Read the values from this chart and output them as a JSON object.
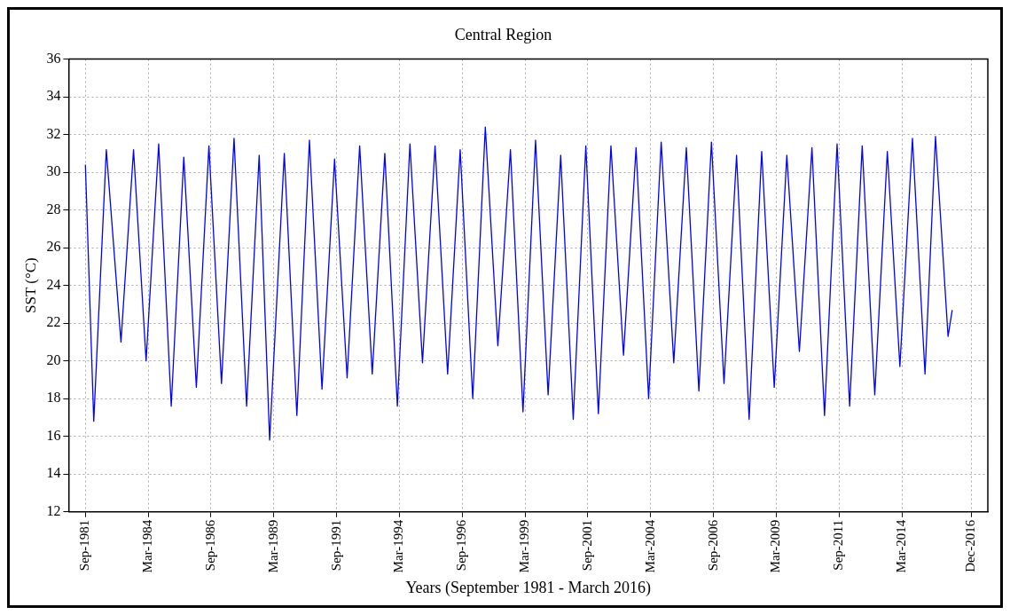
{
  "chart_data": {
    "type": "line",
    "title": "Central Region",
    "xlabel": "Years (September 1981 - March 2016)",
    "ylabel": "SST (°C)",
    "x": [
      "1981-09",
      "1982-01",
      "1982-07",
      "1983-02",
      "1983-08",
      "1984-02",
      "1984-08",
      "1985-02",
      "1985-08",
      "1986-02",
      "1986-08",
      "1987-02",
      "1987-08",
      "1988-02",
      "1988-08",
      "1989-01",
      "1989-08",
      "1990-02",
      "1990-08",
      "1991-02",
      "1991-08",
      "1992-02",
      "1992-08",
      "1993-02",
      "1993-08",
      "1994-02",
      "1994-08",
      "1995-02",
      "1995-08",
      "1996-02",
      "1996-08",
      "1997-02",
      "1997-08",
      "1998-02",
      "1998-08",
      "1999-02",
      "1999-08",
      "2000-02",
      "2000-08",
      "2001-02",
      "2001-08",
      "2002-02",
      "2002-08",
      "2003-02",
      "2003-08",
      "2004-02",
      "2004-08",
      "2005-02",
      "2005-08",
      "2006-02",
      "2006-08",
      "2007-02",
      "2007-08",
      "2008-02",
      "2008-08",
      "2009-02",
      "2009-08",
      "2010-02",
      "2010-08",
      "2011-02",
      "2011-08",
      "2012-02",
      "2012-08",
      "2013-02",
      "2013-08",
      "2014-02",
      "2014-08",
      "2015-02",
      "2015-07",
      "2016-01",
      "2016-03"
    ],
    "series": [
      {
        "color": "#0000ff",
        "values": [
          30.4,
          16.8,
          31.2,
          21.0,
          31.2,
          20.0,
          31.5,
          17.6,
          30.8,
          18.6,
          31.4,
          18.8,
          31.8,
          17.6,
          30.9,
          15.8,
          31.0,
          17.1,
          31.7,
          18.5,
          30.7,
          19.1,
          31.4,
          19.3,
          31.0,
          17.6,
          31.5,
          19.9,
          31.4,
          19.3,
          31.2,
          18.0,
          32.4,
          20.8,
          31.2,
          17.3,
          31.7,
          18.2,
          30.9,
          16.9,
          31.4,
          17.2,
          31.4,
          20.3,
          31.3,
          18.0,
          31.6,
          19.9,
          31.3,
          18.4,
          31.6,
          18.8,
          30.9,
          16.9,
          31.1,
          18.6,
          30.9,
          20.5,
          31.3,
          17.1,
          31.5,
          17.6,
          31.4,
          18.2,
          31.1,
          19.7,
          31.8,
          19.3,
          31.9,
          21.3,
          22.7
        ]
      }
    ],
    "xlim": [
      "1981-01",
      "2017-08"
    ],
    "xticks": [
      {
        "value": "1981-09",
        "label": "Sep-1981"
      },
      {
        "value": "1984-03",
        "label": "Mar-1984"
      },
      {
        "value": "1986-09",
        "label": "Sep-1986"
      },
      {
        "value": "1989-03",
        "label": "Mar-1989"
      },
      {
        "value": "1991-09",
        "label": "Sep-1991"
      },
      {
        "value": "1994-03",
        "label": "Mar-1994"
      },
      {
        "value": "1996-09",
        "label": "Sep-1996"
      },
      {
        "value": "1999-03",
        "label": "Mar-1999"
      },
      {
        "value": "2001-09",
        "label": "Sep-2001"
      },
      {
        "value": "2004-03",
        "label": "Mar-2004"
      },
      {
        "value": "2006-09",
        "label": "Sep-2006"
      },
      {
        "value": "2009-03",
        "label": "Mar-2009"
      },
      {
        "value": "2011-09",
        "label": "Sep-2011"
      },
      {
        "value": "2014-03",
        "label": "Mar-2014"
      },
      {
        "value": "2016-12",
        "label": "Dec-2016"
      }
    ],
    "ylim": [
      12,
      36
    ],
    "yticks": [
      12,
      14,
      16,
      18,
      20,
      22,
      24,
      26,
      28,
      30,
      32,
      34,
      36
    ],
    "grid": true,
    "legend": false,
    "marker": "none",
    "line_style": "solid"
  }
}
